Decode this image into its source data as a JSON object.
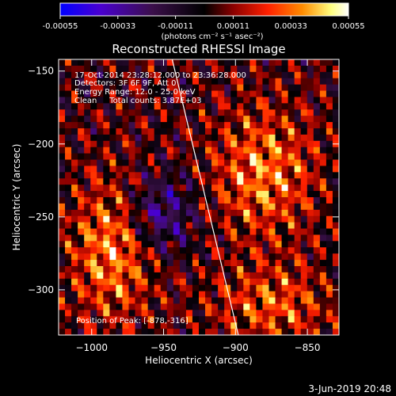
{
  "chart_data": {
    "type": "heatmap",
    "title": "Reconstructed RHESSI Image",
    "xlabel": "Heliocentric X (arcsec)",
    "ylabel": "Heliocentric Y (arcsec)",
    "xlim": [
      -1023,
      -828
    ],
    "ylim": [
      -331,
      -142
    ],
    "x_ticks": [
      -1000,
      -950,
      -900,
      -850
    ],
    "x_tick_labels": [
      "−1000",
      "−950",
      "−900",
      "−850"
    ],
    "y_ticks": [
      -300,
      -250,
      -200,
      -150
    ],
    "y_tick_labels": [
      "−300",
      "−250",
      "−200",
      "−150"
    ],
    "colorbar": {
      "range": [
        -0.00055,
        0.00055
      ],
      "ticks": [
        -0.00055,
        -0.00033,
        -0.00011,
        0.00011,
        0.00033,
        0.00055
      ],
      "tick_labels": [
        "-0.00055",
        "-0.00033",
        "-0.00011",
        "0.00011",
        "0.00033",
        "0.00055"
      ],
      "units_label": "(photons cm⁻² s⁻¹ asec⁻²)",
      "colors": [
        "#0000ff",
        "#5a00c8",
        "#3b0f4a",
        "#000000",
        "#8b0000",
        "#ff2000",
        "#ff8c00",
        "#ffff99",
        "#ffffff"
      ]
    },
    "annotations": [
      "17-Oct-2014 23:28:12.000 to 23:36:28.000",
      "Detectors: 3F 6F 9F, Att 0",
      "Energy Range: 12.0 - 25.0 keV",
      "Clean     Total counts: 3.87E+03"
    ],
    "peak_label": "Position of Peak: [-878,-316]",
    "limb_line": {
      "x": [
        -944,
        -898
      ],
      "y": [
        -142,
        -331
      ]
    }
  },
  "footer": {
    "date": "3-Jun-2019 20:48"
  }
}
